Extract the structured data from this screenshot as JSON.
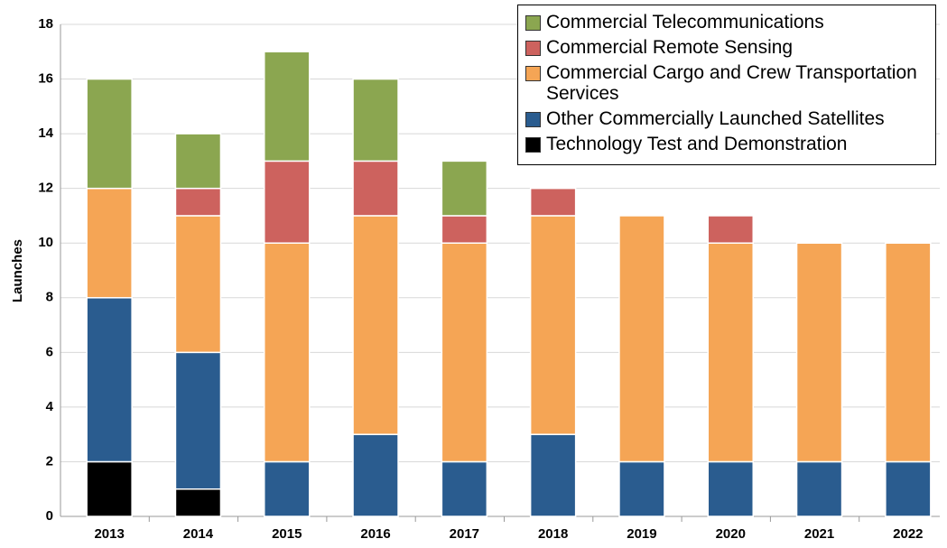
{
  "chart_data": {
    "type": "bar",
    "stacked": true,
    "y_label": "Launches",
    "categories": [
      "2013",
      "2014",
      "2015",
      "2016",
      "2017",
      "2018",
      "2019",
      "2020",
      "2021",
      "2022"
    ],
    "series": [
      {
        "name": "Technology Test and Demonstration",
        "color": "#000000",
        "values": [
          2,
          1,
          0,
          0,
          0,
          0,
          0,
          0,
          0,
          0
        ]
      },
      {
        "name": "Other Commercially Launched Satellites",
        "color": "#2a5c8f",
        "values": [
          6,
          5,
          2,
          3,
          2,
          3,
          2,
          2,
          2,
          2
        ]
      },
      {
        "name": "Commercial Cargo and Crew Transportation Services",
        "color": "#f5a555",
        "values": [
          4,
          5,
          8,
          8,
          8,
          8,
          9,
          8,
          8,
          8
        ]
      },
      {
        "name": "Commercial Remote Sensing",
        "color": "#cd625e",
        "values": [
          0,
          1,
          3,
          2,
          1,
          1,
          0,
          1,
          0,
          0
        ]
      },
      {
        "name": "Commercial Telecommunications",
        "color": "#8ba650",
        "values": [
          4,
          2,
          4,
          3,
          2,
          0,
          0,
          0,
          0,
          0
        ]
      }
    ],
    "ylim": [
      0,
      18
    ],
    "yticks": [
      0,
      2,
      4,
      6,
      8,
      10,
      12,
      14,
      16,
      18
    ],
    "grid": true,
    "legend": "top-right"
  }
}
